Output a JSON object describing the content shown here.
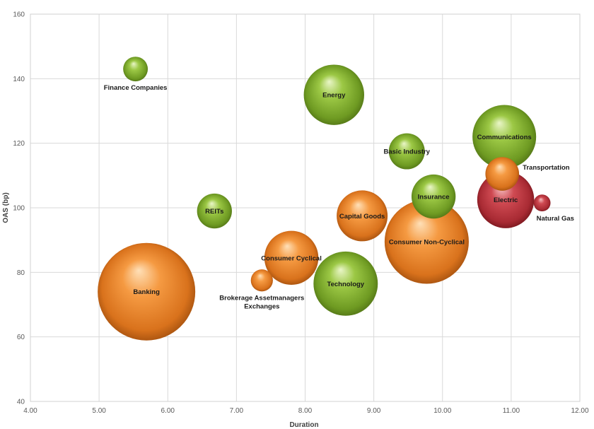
{
  "chart_data": {
    "type": "bubble",
    "title": "",
    "xlabel": "Duration",
    "ylabel": "OAS (bp)",
    "xlim": [
      4.0,
      12.0
    ],
    "ylim": [
      40,
      160
    ],
    "x_ticks": [
      "4.00",
      "5.00",
      "6.00",
      "7.00",
      "8.00",
      "9.00",
      "10.00",
      "11.00",
      "12.00"
    ],
    "y_ticks": [
      "40",
      "60",
      "80",
      "100",
      "120",
      "140",
      "160"
    ],
    "grid": true,
    "colors": {
      "green": "#8db83a",
      "orange": "#f0923a",
      "red": "#c84048"
    },
    "points": [
      {
        "name": "Finance Companies",
        "label_lines": [
          "Finance Companies"
        ],
        "x": 5.53,
        "y": 143,
        "size": 1.5,
        "color": "green",
        "label_pos": "below"
      },
      {
        "name": "Energy",
        "label_lines": [
          "Energy"
        ],
        "x": 8.42,
        "y": 135,
        "size": 9.0,
        "color": "green",
        "label_pos": "center"
      },
      {
        "name": "Basic Industry",
        "label_lines": [
          "Basic Industry"
        ],
        "x": 9.48,
        "y": 117.5,
        "size": 3.2,
        "color": "green",
        "label_pos": "center"
      },
      {
        "name": "Communications",
        "label_lines": [
          "Communications"
        ],
        "x": 10.9,
        "y": 122,
        "size": 10.0,
        "color": "green",
        "label_pos": "center"
      },
      {
        "name": "Transportation",
        "label_lines": [
          "Transportation"
        ],
        "x": 10.87,
        "y": 110.5,
        "size": 2.8,
        "color": "orange",
        "label_pos": "right"
      },
      {
        "name": "REITs",
        "label_lines": [
          "REITs"
        ],
        "x": 6.68,
        "y": 99,
        "size": 3.0,
        "color": "green",
        "label_pos": "center"
      },
      {
        "name": "Insurance",
        "label_lines": [
          "Insurance"
        ],
        "x": 9.87,
        "y": 103.5,
        "size": 4.8,
        "color": "green",
        "label_pos": "center"
      },
      {
        "name": "Electric",
        "label_lines": [
          "Electric"
        ],
        "x": 10.92,
        "y": 102.5,
        "size": 8.0,
        "color": "red",
        "label_pos": "center"
      },
      {
        "name": "Natural Gas",
        "label_lines": [
          "Natural Gas"
        ],
        "x": 11.45,
        "y": 101.5,
        "size": 0.7,
        "color": "red",
        "label_pos": "below-right"
      },
      {
        "name": "Capital Goods",
        "label_lines": [
          "Capital Goods"
        ],
        "x": 8.83,
        "y": 97.5,
        "size": 6.4,
        "color": "orange",
        "label_pos": "center"
      },
      {
        "name": "Consumer Non-Cyclical",
        "label_lines": [
          "Consumer Non-Cyclical"
        ],
        "x": 9.77,
        "y": 89.5,
        "size": 17.5,
        "color": "orange",
        "label_pos": "center"
      },
      {
        "name": "Consumer Cyclical",
        "label_lines": [
          "Consumer Cyclical"
        ],
        "x": 7.8,
        "y": 84.5,
        "size": 7.2,
        "color": "orange",
        "label_pos": "center"
      },
      {
        "name": "Technology",
        "label_lines": [
          "Technology"
        ],
        "x": 8.59,
        "y": 76.5,
        "size": 10.2,
        "color": "green",
        "label_pos": "center"
      },
      {
        "name": "Brokerage Assetmanagers Exchanges",
        "label_lines": [
          "Brokerage Assetmanagers",
          "Exchanges"
        ],
        "x": 7.37,
        "y": 77.5,
        "size": 1.2,
        "color": "orange",
        "label_pos": "below"
      },
      {
        "name": "Banking",
        "label_lines": [
          "Banking"
        ],
        "x": 5.69,
        "y": 74,
        "size": 23.5,
        "color": "orange",
        "label_pos": "center"
      }
    ]
  }
}
